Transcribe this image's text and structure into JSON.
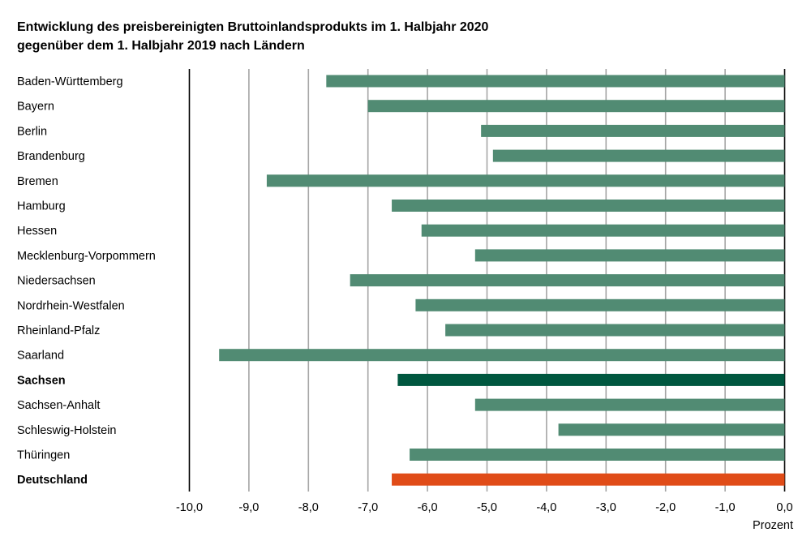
{
  "chart_data": {
    "type": "bar",
    "orientation": "horizontal",
    "title_line1": "Entwicklung des preisbereinigten Bruttoinlandsprodukts im 1. Halbjahr 2020",
    "title_line2": "gegenüber dem 1. Halbjahr 2019 nach Ländern",
    "categories": [
      "Baden-Württemberg",
      "Bayern",
      "Berlin",
      "Brandenburg",
      "Bremen",
      "Hamburg",
      "Hessen",
      "Mecklenburg-Vorpommern",
      "Niedersachsen",
      "Nordrhein-Westfalen",
      "Rheinland-Pfalz",
      "Saarland",
      "Sachsen",
      "Sachsen-Anhalt",
      "Schleswig-Holstein",
      "Thüringen",
      "Deutschland"
    ],
    "values": [
      -7.7,
      -7.0,
      -5.1,
      -4.9,
      -8.7,
      -6.6,
      -6.1,
      -5.2,
      -7.3,
      -6.2,
      -5.7,
      -9.5,
      -6.5,
      -5.2,
      -3.8,
      -6.3,
      -6.6
    ],
    "bold_categories": [
      "Sachsen",
      "Deutschland"
    ],
    "colors": {
      "default": "#518b73",
      "Sachsen": "#00573f",
      "Deutschland": "#e04c18"
    },
    "xlabel": "Prozent",
    "xlim": [
      -10,
      0
    ],
    "xticks": [
      "-10,0",
      "-9,0",
      "-8,0",
      "-7,0",
      "-6,0",
      "-5,0",
      "-4,0",
      "-3,0",
      "-2,0",
      "-1,0",
      "0,0"
    ],
    "grid": true
  }
}
